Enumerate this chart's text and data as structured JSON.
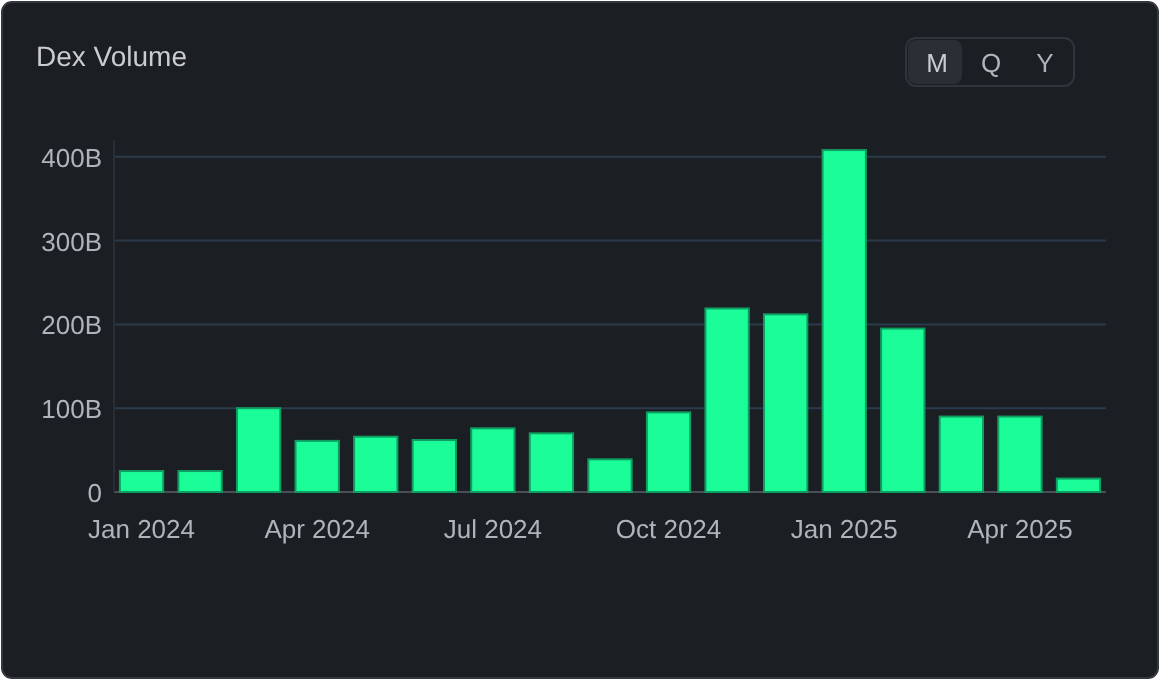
{
  "chart_data": {
    "type": "bar",
    "title": "Dex Volume",
    "categories": [
      "Jan 2024",
      null,
      null,
      "Apr 2024",
      null,
      null,
      "Jul 2024",
      null,
      null,
      "Oct 2024",
      null,
      null,
      "Jan 2025",
      null,
      null,
      "Apr 2025",
      null
    ],
    "values": [
      25,
      25,
      100,
      61,
      66,
      62,
      76,
      70,
      39,
      95,
      219,
      212,
      408,
      195,
      90,
      90,
      16
    ],
    "color": "#1bfd98",
    "ylim": [
      0,
      420
    ],
    "yticks": [
      0,
      {
        "value": 100,
        "label": "100B"
      },
      {
        "value": 200,
        "label": "200B"
      },
      {
        "value": 300,
        "label": "300B"
      },
      {
        "value": 400,
        "label": "400B"
      }
    ],
    "grid": "y",
    "annotations": [
      "M",
      "Q",
      "Y"
    ]
  }
}
